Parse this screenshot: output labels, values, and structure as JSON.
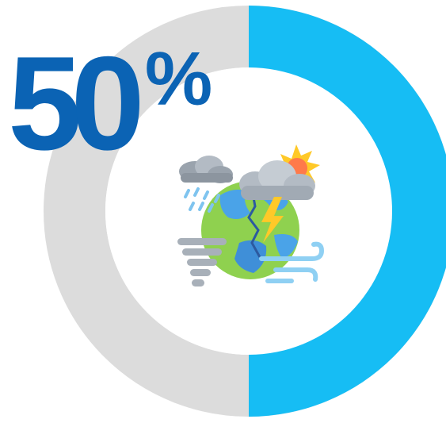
{
  "infographic": {
    "percent_number": "50",
    "percent_sign": "%",
    "progress_fraction": 0.5,
    "colors": {
      "filled": "#16bdf4",
      "track": "#dcdcdc",
      "text": "#0b63b4",
      "center": "#ffffff"
    },
    "icon": "climate-weather-earth-icon"
  }
}
